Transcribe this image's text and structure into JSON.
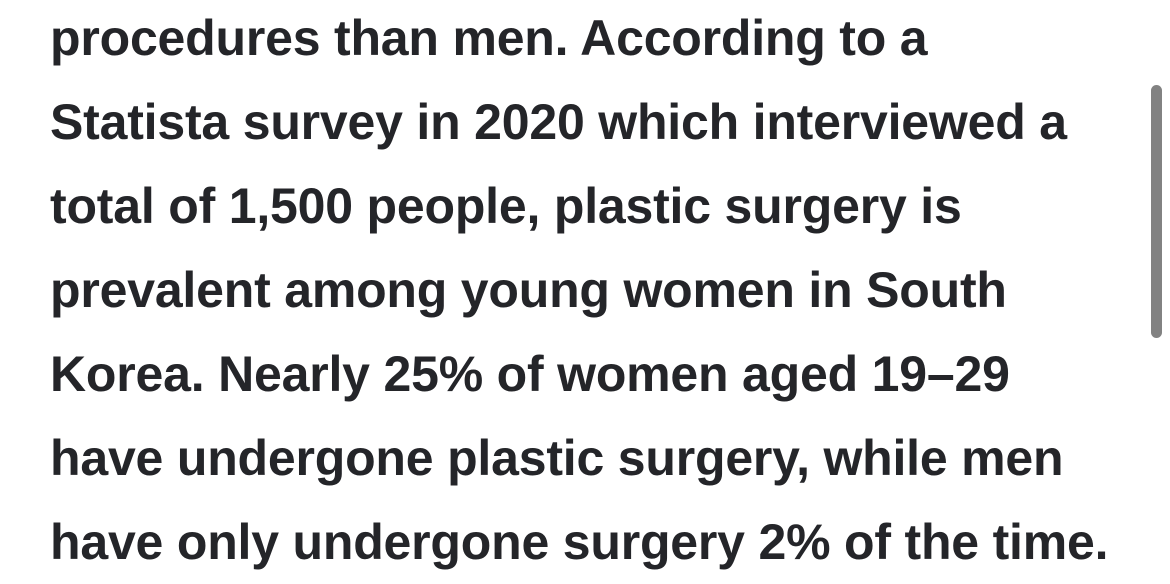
{
  "page": {
    "background_color": "#ffffff"
  },
  "article": {
    "text_color": "#242529",
    "full_text": "procedures than men. According to a Statista survey in 2020 which interviewed a total of 1,500 people, plastic surgery is prevalent among young women in South Korea. Nearly 25% of women aged 19–29 have undergone plastic surgery, while men have only undergone surgery 2% of the time.",
    "lines": [
      "procedures than men. According to a",
      "Statista survey in 2020 which interviewed a",
      "total of 1,500 people, plastic surgery is",
      "prevalent among young women in South",
      "Korea. Nearly 25% of women aged 19–29",
      "have undergone plastic surgery, while men",
      "have only undergone surgery 2% of the time."
    ]
  },
  "scrollbar": {
    "thumb_color": "#828282"
  }
}
